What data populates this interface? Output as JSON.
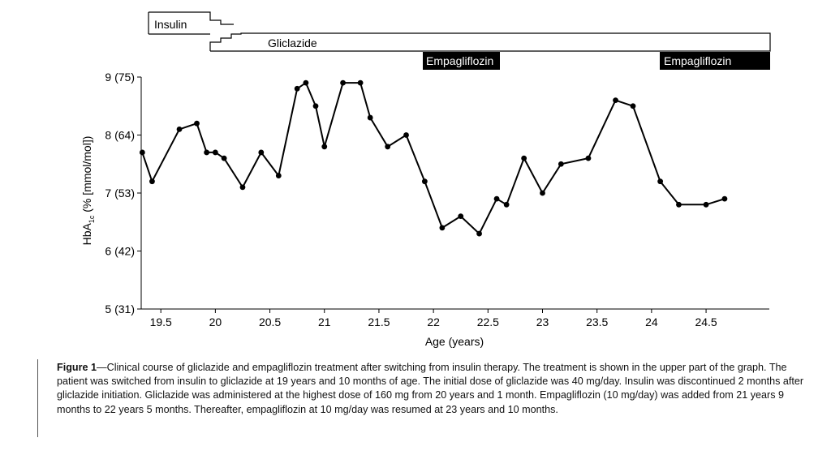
{
  "chart_data": {
    "type": "line",
    "ylabel_main": "HbA",
    "ylabel_sub": "1c",
    "ylabel_rest": " (% [mmol/mol])",
    "xlabel": "Age (years)",
    "xlim": [
      19.32,
      25.08
    ],
    "ylim": [
      5,
      9
    ],
    "x_ticks": [
      19.5,
      20,
      20.5,
      21,
      21.5,
      22,
      22.5,
      23,
      23.5,
      24,
      24.5
    ],
    "x_tick_labels": [
      "19.5",
      "20",
      "20.5",
      "21",
      "21.5",
      "22",
      "22.5",
      "23",
      "23.5",
      "24",
      "24.5"
    ],
    "y_ticks": [
      5,
      6,
      7,
      8,
      9
    ],
    "y_tick_labels": [
      "5 (31)",
      "6 (42)",
      "7 (53)",
      "8 (64)",
      "9 (75)"
    ],
    "grid": false,
    "series": [
      {
        "x": [
          19.33,
          19.42,
          19.67,
          19.83,
          19.92,
          20.0,
          20.08,
          20.25,
          20.42,
          20.58,
          20.75,
          20.83,
          20.92,
          21.0,
          21.17,
          21.33,
          21.42,
          21.58,
          21.75,
          21.92,
          22.08,
          22.25,
          22.42,
          22.58,
          22.67,
          22.83,
          23.0,
          23.17,
          23.42,
          23.67,
          23.83,
          24.08,
          24.25,
          24.5,
          24.67
        ],
        "y": [
          7.7,
          7.2,
          8.1,
          8.2,
          7.7,
          7.7,
          7.6,
          7.1,
          7.7,
          7.3,
          8.8,
          8.9,
          8.5,
          7.8,
          8.9,
          8.9,
          8.3,
          7.8,
          8.0,
          7.2,
          6.4,
          6.6,
          6.3,
          6.9,
          6.8,
          7.6,
          7.0,
          7.5,
          7.6,
          8.6,
          8.5,
          7.2,
          6.8,
          6.8,
          6.9
        ]
      }
    ]
  },
  "treatment": {
    "insulin": {
      "label": "Insulin"
    },
    "gliclazide": {
      "label": "Gliclazide",
      "start": 19.83
    },
    "empagliflozin_1": {
      "label": "Empagliflozin",
      "start": 21.75,
      "end": 22.42
    },
    "empagliflozin_2": {
      "label": "Empagliflozin",
      "start": 23.83,
      "end": 25.08
    }
  },
  "caption": {
    "label": "Figure 1",
    "text": "—Clinical course of gliclazide and empagliflozin treatment after switching from insulin therapy. The treatment is shown in the upper part of the graph. The patient was switched from insulin to gliclazide at 19 years and 10 months of age. The initial dose of gliclazide was 40 mg/day. Insulin was discontinued 2 months after gliclazide initiation. Gliclazide was administered at the highest dose of 160 mg from 20 years and 1 month. Empagliflozin (10 mg/day) was added from 21 years 9 months to 22 years 5 months. Thereafter, empagliflozin at 10 mg/day was resumed at 23 years and 10 months."
  }
}
